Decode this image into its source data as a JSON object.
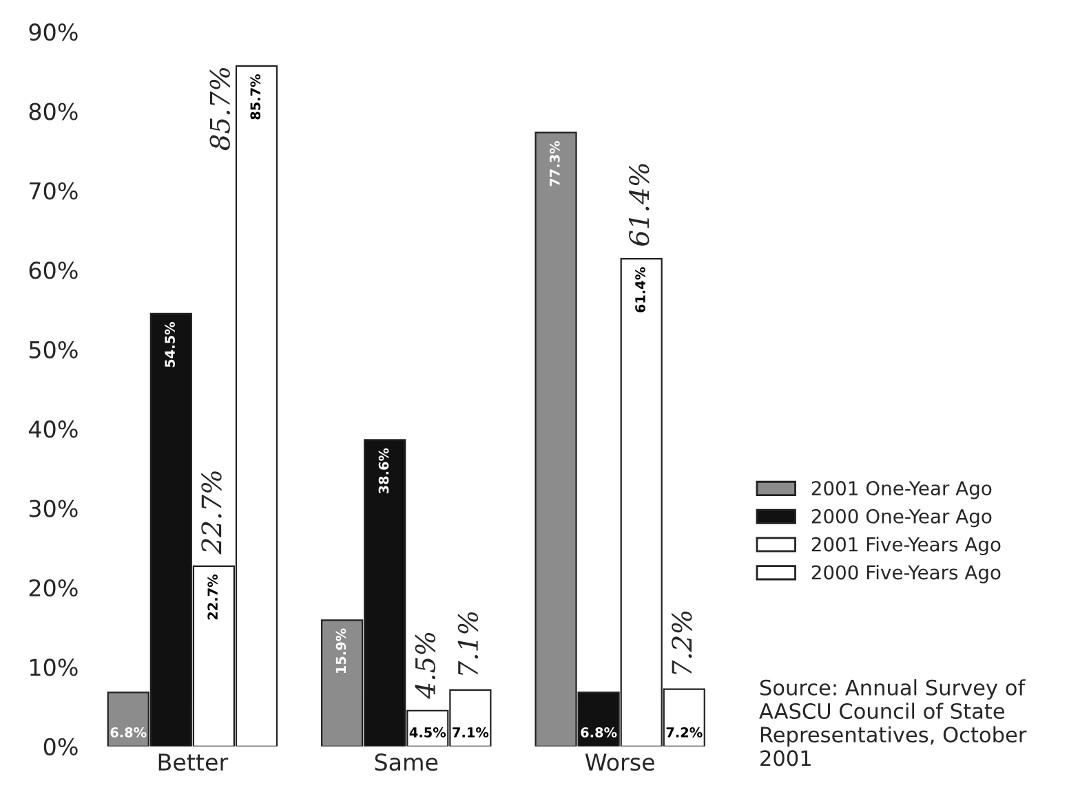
{
  "chart_data": {
    "type": "bar",
    "categories": [
      "Better",
      "Same",
      "Worse"
    ],
    "series": [
      {
        "name": "2001 One-Year Ago",
        "color": "#8c8c8c",
        "values": [
          6.8,
          15.9,
          77.3
        ]
      },
      {
        "name": "2000 One-Year Ago",
        "color": "#111111",
        "values": [
          54.5,
          38.6,
          6.8
        ]
      },
      {
        "name": "2001 Five-Years Ago",
        "color": "#ffffff",
        "values": [
          22.7,
          4.5,
          61.4
        ]
      },
      {
        "name": "2000 Five-Years Ago",
        "color": "#ffffff",
        "values": [
          85.7,
          7.1,
          7.2
        ]
      }
    ],
    "ylim": [
      0,
      90
    ],
    "yticks": [
      {
        "value": 0,
        "label": "0%"
      },
      {
        "value": 10,
        "label": "10%"
      },
      {
        "value": 20,
        "label": "20%"
      },
      {
        "value": 30,
        "label": "30%"
      },
      {
        "value": 40,
        "label": "40%"
      },
      {
        "value": 50,
        "label": "50%"
      },
      {
        "value": 60,
        "label": "60%"
      },
      {
        "value": 70,
        "label": "70%"
      },
      {
        "value": 80,
        "label": "80%"
      },
      {
        "value": 90,
        "label": "90%"
      }
    ],
    "value_labels": [
      [
        "6.8%",
        "15.9%",
        "77.3%"
      ],
      [
        "54.5%",
        "38.6%",
        "6.8%"
      ],
      [
        "22.7%",
        "4.5%",
        "61.4%"
      ],
      [
        "85.7%",
        "7.1%",
        "7.2%"
      ]
    ],
    "legend": "right",
    "grid": false,
    "annotations": [
      "85.7%",
      {
        "text": "22.7%",
        "x": "Better",
        "y": 22.7
      },
      {
        "text": "4.5%",
        "x": "Same",
        "y": 4.5
      },
      {
        "text": "7.1%",
        "x": "Same",
        "y": 7.1
      },
      {
        "text": "61.4%",
        "x": "Worse",
        "y": 61.4
      },
      {
        "text": "7.2%",
        "x": "Worse",
        "y": 7.2
      },
      "Source: Annual Survey of AASCU Council of State Representatives, October 2001"
    ]
  }
}
